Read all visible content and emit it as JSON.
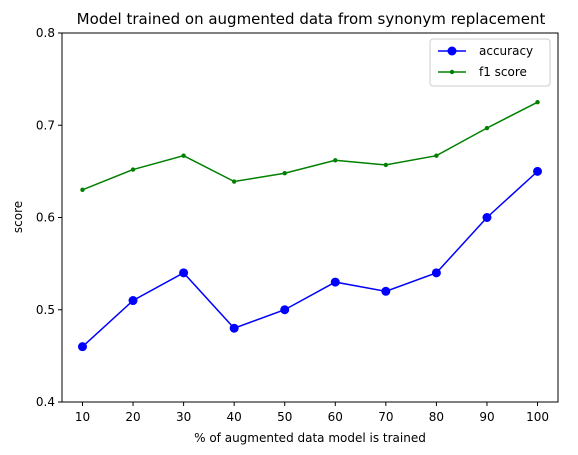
{
  "chart_data": {
    "type": "line",
    "title": "Model trained on augmented data from synonym replacement",
    "xlabel": "% of augmented data model is trained",
    "ylabel": "score",
    "x": [
      10,
      20,
      30,
      40,
      50,
      60,
      70,
      80,
      90,
      100
    ],
    "x_tick_labels": [
      "10",
      "20",
      "30",
      "40",
      "50",
      "60",
      "70",
      "80",
      "90",
      "100"
    ],
    "ylim": [
      0.4,
      0.8
    ],
    "y_ticks": [
      0.4,
      0.5,
      0.6,
      0.7,
      0.8
    ],
    "y_tick_labels": [
      "0.4",
      "0.5",
      "0.6",
      "0.7",
      "0.8"
    ],
    "grid": false,
    "legend_position": "top-right",
    "series": [
      {
        "name": "accuracy",
        "color": "#0000ff",
        "marker": "large-circle",
        "values": [
          0.46,
          0.51,
          0.54,
          0.48,
          0.5,
          0.53,
          0.52,
          0.54,
          0.6,
          0.65
        ]
      },
      {
        "name": "f1 score",
        "color": "#008000",
        "marker": "small-dot",
        "values": [
          0.63,
          0.652,
          0.667,
          0.639,
          0.648,
          0.662,
          0.657,
          0.667,
          0.697,
          0.725
        ]
      }
    ]
  }
}
